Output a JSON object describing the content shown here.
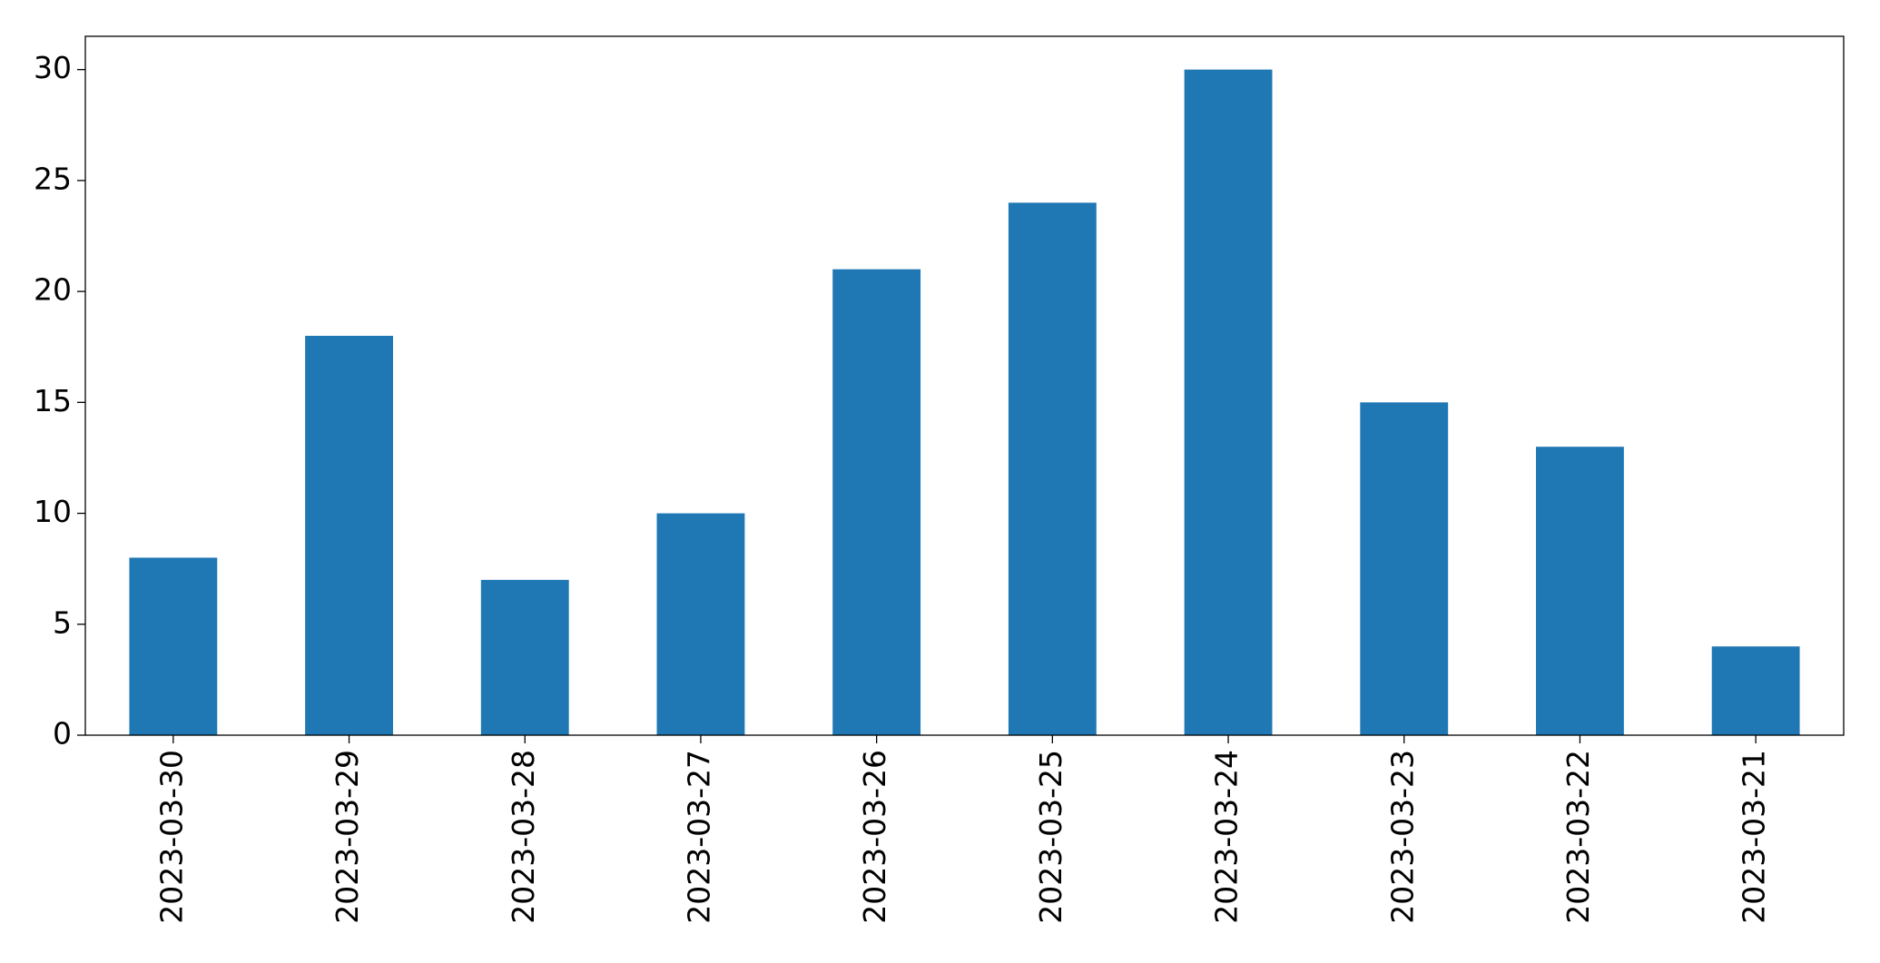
{
  "chart_data": {
    "type": "bar",
    "categories": [
      "2023-03-30",
      "2023-03-29",
      "2023-03-28",
      "2023-03-27",
      "2023-03-26",
      "2023-03-25",
      "2023-03-24",
      "2023-03-23",
      "2023-03-22",
      "2023-03-21"
    ],
    "values": [
      8,
      18,
      7,
      10,
      21,
      24,
      30,
      15,
      13,
      4
    ],
    "color": "#1f77b4",
    "ylim": [
      0,
      31.5
    ],
    "yticks": [
      0,
      5,
      10,
      15,
      20,
      25,
      30
    ],
    "grid": false
  }
}
